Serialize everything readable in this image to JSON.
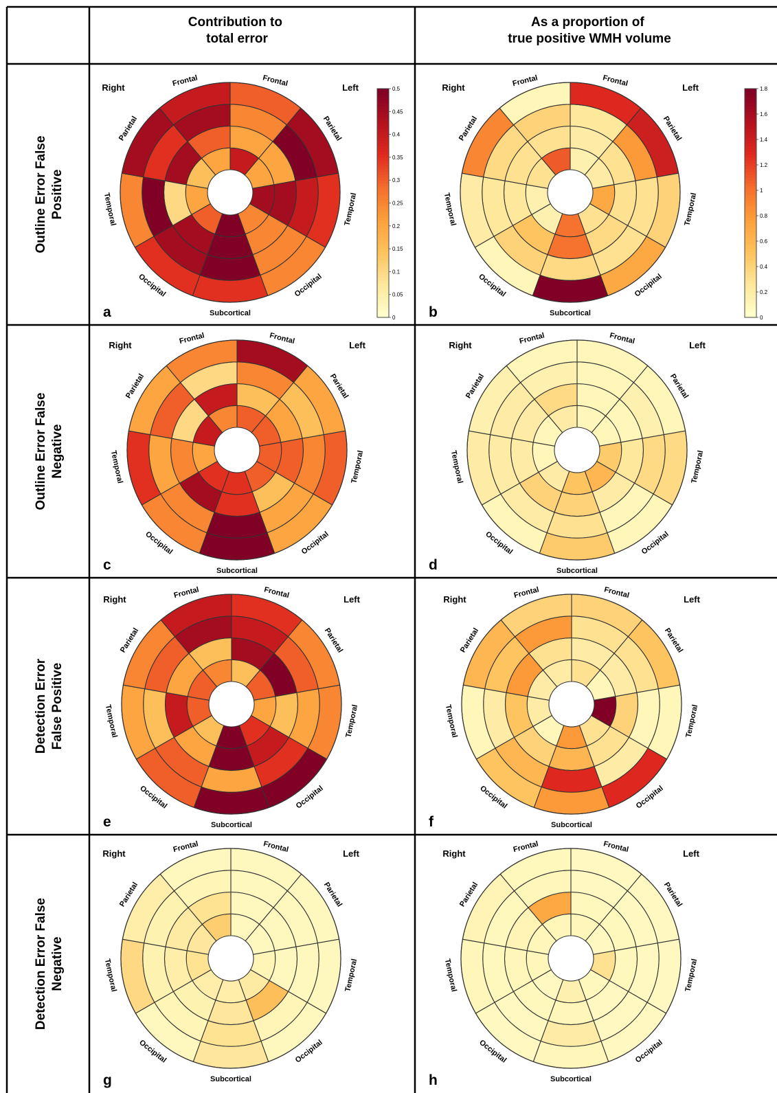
{
  "header": {
    "col1": "Contribution to\ntotal error",
    "col2": "As a proportion of\ntrue positive WMH volume"
  },
  "rows": [
    "Outline Error False\nPositive",
    "Outline Error False\nNegative",
    "Detection Error\nFalse Positive",
    "Detection Error False\nNegative"
  ],
  "region_labels": {
    "right": "Right",
    "left": "Left",
    "frontal": "Frontal",
    "parietal": "Parietal",
    "temporal": "Temporal",
    "occipital": "Occipital",
    "subcortical": "Subcortical"
  },
  "colorbars": [
    {
      "ticks": [
        "0",
        "0.05",
        "0.1",
        "0.15",
        "0.2",
        "0.25",
        "0.3",
        "0.35",
        "0.4",
        "0.45",
        "0.5"
      ],
      "min": 0,
      "max": 0.5
    },
    {
      "ticks": [
        "0",
        "0.2",
        "0.4",
        "0.6",
        "0.8",
        "1",
        "1.2",
        "1.4",
        "1.6",
        "1.8"
      ],
      "min": 0,
      "max": 1.8
    }
  ],
  "colors": {
    "scale": [
      "#ffffcc",
      "#fee79b",
      "#fdc25c",
      "#fd9f3a",
      "#f46d2c",
      "#e0291f",
      "#b3121e",
      "#800026"
    ]
  },
  "chart_data": [
    {
      "type": "heatmap",
      "panel": "a",
      "scale": 0,
      "segments": [
        "Left Frontal",
        "Left Parietal",
        "Left Temporal",
        "Left Occipital",
        "Subcortical",
        "Right Occipital",
        "Right Temporal",
        "Right Parietal",
        "Right Frontal"
      ],
      "ring_order": "inner-to-outer",
      "values": [
        [
          0.4,
          0.2,
          0.25,
          0.3
        ],
        [
          0.2,
          0.2,
          0.5,
          0.45
        ],
        [
          0.45,
          0.45,
          0.4,
          0.35
        ],
        [
          0.25,
          0.25,
          0.25,
          0.25
        ],
        [
          0.5,
          0.5,
          0.5,
          0.35
        ],
        [
          0.3,
          0.45,
          0.45,
          0.35
        ],
        [
          0.2,
          0.1,
          0.5,
          0.25
        ],
        [
          0.15,
          0.45,
          0.35,
          0.45
        ],
        [
          0.2,
          0.3,
          0.45,
          0.4
        ]
      ]
    },
    {
      "type": "heatmap",
      "panel": "b",
      "scale": 1,
      "segments": [
        "Left Frontal",
        "Left Parietal",
        "Left Temporal",
        "Left Occipital",
        "Subcortical",
        "Right Occipital",
        "Right Temporal",
        "Right Parietal",
        "Right Frontal"
      ],
      "ring_order": "inner-to-outer",
      "values": [
        [
          0.15,
          0.2,
          0.25,
          1.3
        ],
        [
          0.2,
          0.3,
          0.8,
          1.4
        ],
        [
          0.7,
          0.3,
          0.3,
          0.4
        ],
        [
          0.3,
          0.35,
          0.3,
          0.7
        ],
        [
          1.0,
          1.0,
          0.35,
          1.8
        ],
        [
          0.15,
          0.5,
          0.4,
          0.1
        ],
        [
          0.15,
          0.25,
          0.25,
          0.2
        ],
        [
          0.3,
          0.3,
          0.35,
          0.9
        ],
        [
          1.1,
          0.3,
          0.4,
          0.1
        ]
      ]
    },
    {
      "type": "heatmap",
      "panel": "c",
      "scale": 0,
      "segments": [
        "Left Frontal",
        "Left Parietal",
        "Left Temporal",
        "Left Occipital",
        "Subcortical",
        "Right Occipital",
        "Right Temporal",
        "Right Parietal",
        "Right Frontal"
      ],
      "ring_order": "inner-to-outer",
      "values": [
        [
          0.3,
          0.15,
          0.25,
          0.45
        ],
        [
          0.3,
          0.2,
          0.15,
          0.2
        ],
        [
          0.3,
          0.3,
          0.25,
          0.3
        ],
        [
          0.3,
          0.15,
          0.2,
          0.2
        ],
        [
          0.35,
          0.35,
          0.5,
          0.5
        ],
        [
          0.35,
          0.45,
          0.25,
          0.25
        ],
        [
          0.2,
          0.25,
          0.2,
          0.35
        ],
        [
          0.4,
          0.1,
          0.3,
          0.2
        ],
        [
          0.25,
          0.4,
          0.1,
          0.25
        ]
      ]
    },
    {
      "type": "heatmap",
      "panel": "d",
      "scale": 1,
      "segments": [
        "Left Frontal",
        "Left Parietal",
        "Left Temporal",
        "Left Occipital",
        "Subcortical",
        "Right Occipital",
        "Right Temporal",
        "Right Parietal",
        "Right Frontal"
      ],
      "ring_order": "inner-to-outer",
      "values": [
        [
          0.1,
          0.1,
          0.1,
          0.1
        ],
        [
          0.1,
          0.1,
          0.15,
          0.1
        ],
        [
          0.45,
          0.25,
          0.35,
          0.35
        ],
        [
          0.6,
          0.2,
          0.1,
          0.1
        ],
        [
          0.5,
          0.4,
          0.3,
          0.45
        ],
        [
          0.2,
          0.4,
          0.2,
          0.1
        ],
        [
          0.1,
          0.2,
          0.2,
          0.2
        ],
        [
          0.1,
          0.2,
          0.2,
          0.15
        ],
        [
          0.2,
          0.35,
          0.15,
          0.1
        ]
      ]
    },
    {
      "type": "heatmap",
      "panel": "e",
      "scale": 0,
      "segments": [
        "Left Frontal",
        "Left Parietal",
        "Left Temporal",
        "Left Occipital",
        "Subcortical",
        "Right Occipital",
        "Right Temporal",
        "Right Parietal",
        "Right Frontal"
      ],
      "ring_order": "inner-to-outer",
      "values": [
        [
          0.15,
          0.45,
          0.4,
          0.35
        ],
        [
          0.3,
          0.5,
          0.3,
          0.25
        ],
        [
          0.2,
          0.15,
          0.2,
          0.25
        ],
        [
          0.35,
          0.4,
          0.35,
          0.5
        ],
        [
          0.5,
          0.5,
          0.2,
          0.5
        ],
        [
          0.15,
          0.2,
          0.3,
          0.3
        ],
        [
          0.3,
          0.4,
          0.15,
          0.2
        ],
        [
          0.3,
          0.2,
          0.3,
          0.25
        ],
        [
          0.25,
          0.15,
          0.45,
          0.4
        ]
      ]
    },
    {
      "type": "heatmap",
      "panel": "f",
      "scale": 1,
      "segments": [
        "Left Frontal",
        "Left Parietal",
        "Left Temporal",
        "Left Occipital",
        "Subcortical",
        "Right Occipital",
        "Right Temporal",
        "Right Parietal",
        "Right Frontal"
      ],
      "ring_order": "inner-to-outer",
      "values": [
        [
          0.3,
          0.2,
          0.3,
          0.4
        ],
        [
          0.1,
          0.2,
          0.3,
          0.5
        ],
        [
          1.8,
          0.4,
          0.1,
          0.1
        ],
        [
          0.3,
          0.3,
          0.2,
          1.3
        ],
        [
          0.8,
          0.6,
          1.3,
          0.8
        ],
        [
          0.1,
          0.4,
          0.6,
          0.5
        ],
        [
          0.2,
          0.5,
          0.2,
          0.1
        ],
        [
          0.2,
          0.8,
          0.5,
          0.6
        ],
        [
          0.2,
          0.3,
          0.8,
          0.4
        ]
      ]
    },
    {
      "type": "heatmap",
      "panel": "g",
      "scale": 0,
      "segments": [
        "Left Frontal",
        "Left Parietal",
        "Left Temporal",
        "Left Occipital",
        "Subcortical",
        "Right Occipital",
        "Right Temporal",
        "Right Parietal",
        "Right Frontal"
      ],
      "ring_order": "inner-to-outer",
      "values": [
        [
          0.02,
          0.02,
          0.02,
          0.02
        ],
        [
          0.02,
          0.02,
          0.02,
          0.02
        ],
        [
          0.03,
          0.02,
          0.02,
          0.02
        ],
        [
          0.06,
          0.15,
          0.03,
          0.02
        ],
        [
          0.05,
          0.07,
          0.08,
          0.07
        ],
        [
          0.05,
          0.04,
          0.03,
          0.02
        ],
        [
          0.08,
          0.05,
          0.04,
          0.1
        ],
        [
          0.07,
          0.06,
          0.04,
          0.05
        ],
        [
          0.12,
          0.08,
          0.03,
          0.02
        ]
      ]
    },
    {
      "type": "heatmap",
      "panel": "h",
      "scale": 1,
      "segments": [
        "Left Frontal",
        "Left Parietal",
        "Left Temporal",
        "Left Occipital",
        "Subcortical",
        "Right Occipital",
        "Right Temporal",
        "Right Parietal",
        "Right Frontal"
      ],
      "ring_order": "inner-to-outer",
      "values": [
        [
          0.1,
          0.08,
          0.06,
          0.06
        ],
        [
          0.06,
          0.08,
          0.06,
          0.06
        ],
        [
          0.3,
          0.08,
          0.06,
          0.06
        ],
        [
          0.08,
          0.06,
          0.06,
          0.06
        ],
        [
          0.15,
          0.1,
          0.2,
          0.1
        ],
        [
          0.06,
          0.08,
          0.06,
          0.06
        ],
        [
          0.1,
          0.1,
          0.08,
          0.1
        ],
        [
          0.1,
          0.12,
          0.08,
          0.12
        ],
        [
          0.1,
          0.7,
          0.1,
          0.08
        ]
      ]
    }
  ]
}
